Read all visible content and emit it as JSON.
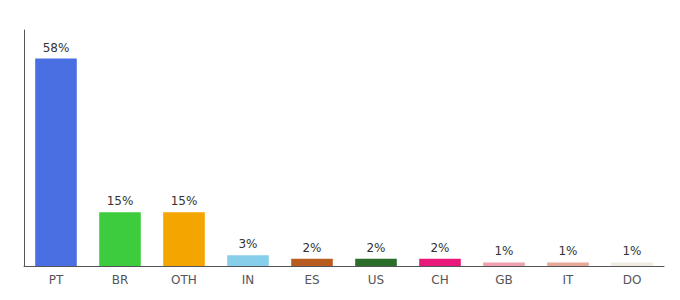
{
  "chart_data": {
    "type": "bar",
    "categories": [
      "PT",
      "BR",
      "OTH",
      "IN",
      "ES",
      "US",
      "CH",
      "GB",
      "IT",
      "DO"
    ],
    "values": [
      58,
      15,
      15,
      3,
      2,
      2,
      2,
      1,
      1,
      1
    ],
    "value_labels": [
      "58%",
      "15%",
      "15%",
      "3%",
      "2%",
      "2%",
      "2%",
      "1%",
      "1%",
      "1%"
    ],
    "colors": [
      "#4a6fe3",
      "#3dcc3d",
      "#f5a500",
      "#87ceeb",
      "#b85c20",
      "#2a6e2a",
      "#e8197a",
      "#f0a0b0",
      "#e8a898",
      "#f0ece0"
    ],
    "ylim": [
      0,
      66
    ],
    "data_labels": true,
    "tick_labels": "x",
    "grid": false
  }
}
